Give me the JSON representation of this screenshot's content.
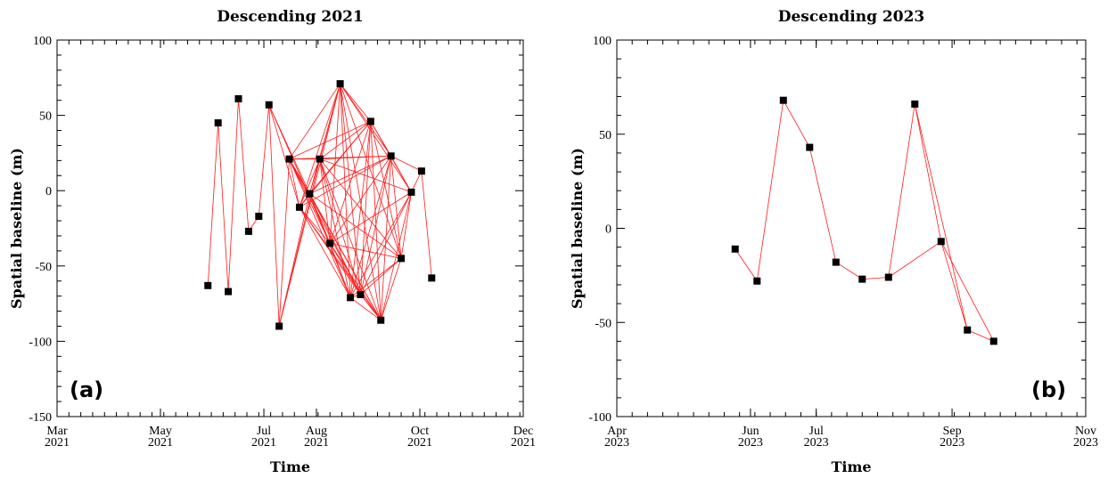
{
  "chart_data": [
    {
      "type": "scatter",
      "title": "Descending 2021",
      "panel_label": "(a)",
      "xlabel": "Time",
      "ylabel": "Spatial baseline (m)",
      "xlim": [
        "2021-03-01",
        "2021-12-01"
      ],
      "ylim": [
        -150,
        100
      ],
      "yticks": [
        -150,
        -100,
        -50,
        0,
        50,
        100
      ],
      "xticks": [
        {
          "date": "2021-03-01",
          "month": "Mar",
          "year": "2021"
        },
        {
          "date": "2021-05-01",
          "month": "May",
          "year": "2021"
        },
        {
          "date": "2021-07-01",
          "month": "Jul",
          "year": "2021"
        },
        {
          "date": "2021-08-01",
          "month": "Aug",
          "year": "2021"
        },
        {
          "date": "2021-10-01",
          "month": "Oct",
          "year": "2021"
        },
        {
          "date": "2021-12-01",
          "month": "Dec",
          "year": "2021"
        }
      ],
      "points": [
        {
          "date": "2021-05-29",
          "y": -63
        },
        {
          "date": "2021-06-04",
          "y": 45
        },
        {
          "date": "2021-06-10",
          "y": -67
        },
        {
          "date": "2021-06-16",
          "y": 61
        },
        {
          "date": "2021-06-22",
          "y": -27
        },
        {
          "date": "2021-06-28",
          "y": -17
        },
        {
          "date": "2021-07-04",
          "y": 57
        },
        {
          "date": "2021-07-10",
          "y": -90
        },
        {
          "date": "2021-07-16",
          "y": 21
        },
        {
          "date": "2021-07-22",
          "y": -11
        },
        {
          "date": "2021-07-28",
          "y": -2
        },
        {
          "date": "2021-08-03",
          "y": 21
        },
        {
          "date": "2021-08-09",
          "y": -35
        },
        {
          "date": "2021-08-15",
          "y": 71
        },
        {
          "date": "2021-08-21",
          "y": -71
        },
        {
          "date": "2021-08-27",
          "y": -69
        },
        {
          "date": "2021-09-02",
          "y": 46
        },
        {
          "date": "2021-09-08",
          "y": -86
        },
        {
          "date": "2021-09-14",
          "y": 23
        },
        {
          "date": "2021-09-20",
          "y": -45
        },
        {
          "date": "2021-09-26",
          "y": -1
        },
        {
          "date": "2021-10-02",
          "y": 13
        },
        {
          "date": "2021-10-08",
          "y": -58
        }
      ],
      "edges": [
        [
          0,
          1
        ],
        [
          1,
          2
        ],
        [
          2,
          3
        ],
        [
          3,
          4
        ],
        [
          4,
          5
        ],
        [
          5,
          6
        ],
        [
          6,
          7
        ],
        [
          6,
          9
        ],
        [
          6,
          10
        ],
        [
          6,
          12
        ],
        [
          7,
          8
        ],
        [
          7,
          10
        ],
        [
          7,
          11
        ],
        [
          7,
          13
        ],
        [
          8,
          9
        ],
        [
          8,
          10
        ],
        [
          8,
          11
        ],
        [
          8,
          12
        ],
        [
          8,
          13
        ],
        [
          8,
          14
        ],
        [
          8,
          15
        ],
        [
          8,
          16
        ],
        [
          8,
          17
        ],
        [
          8,
          18
        ],
        [
          9,
          10
        ],
        [
          9,
          11
        ],
        [
          9,
          12
        ],
        [
          9,
          13
        ],
        [
          9,
          14
        ],
        [
          9,
          15
        ],
        [
          9,
          16
        ],
        [
          9,
          17
        ],
        [
          9,
          18
        ],
        [
          10,
          11
        ],
        [
          10,
          12
        ],
        [
          10,
          13
        ],
        [
          10,
          14
        ],
        [
          10,
          15
        ],
        [
          10,
          16
        ],
        [
          10,
          17
        ],
        [
          10,
          18
        ],
        [
          10,
          19
        ],
        [
          11,
          12
        ],
        [
          11,
          13
        ],
        [
          11,
          14
        ],
        [
          11,
          15
        ],
        [
          11,
          16
        ],
        [
          11,
          17
        ],
        [
          11,
          18
        ],
        [
          11,
          19
        ],
        [
          11,
          20
        ],
        [
          12,
          13
        ],
        [
          12,
          14
        ],
        [
          12,
          15
        ],
        [
          12,
          16
        ],
        [
          12,
          17
        ],
        [
          12,
          18
        ],
        [
          12,
          19
        ],
        [
          12,
          20
        ],
        [
          13,
          14
        ],
        [
          13,
          15
        ],
        [
          13,
          16
        ],
        [
          13,
          17
        ],
        [
          13,
          18
        ],
        [
          13,
          19
        ],
        [
          13,
          20
        ],
        [
          14,
          15
        ],
        [
          14,
          16
        ],
        [
          14,
          17
        ],
        [
          14,
          18
        ],
        [
          14,
          19
        ],
        [
          14,
          20
        ],
        [
          15,
          16
        ],
        [
          15,
          17
        ],
        [
          15,
          18
        ],
        [
          15,
          19
        ],
        [
          15,
          20
        ],
        [
          16,
          17
        ],
        [
          16,
          18
        ],
        [
          16,
          19
        ],
        [
          16,
          20
        ],
        [
          17,
          18
        ],
        [
          17,
          19
        ],
        [
          17,
          20
        ],
        [
          18,
          19
        ],
        [
          18,
          20
        ],
        [
          18,
          21
        ],
        [
          19,
          20
        ],
        [
          20,
          21
        ],
        [
          21,
          22
        ]
      ]
    },
    {
      "type": "scatter",
      "title": "Descending 2023",
      "panel_label": "(b)",
      "xlabel": "Time",
      "ylabel": "Spatial baseline (m)",
      "xlim": [
        "2023-04-01",
        "2023-11-01"
      ],
      "ylim": [
        -100,
        100
      ],
      "yticks": [
        -100,
        -50,
        0,
        50,
        100
      ],
      "xticks": [
        {
          "date": "2023-04-01",
          "month": "Apr",
          "year": "2023"
        },
        {
          "date": "2023-06-01",
          "month": "Jun",
          "year": "2023"
        },
        {
          "date": "2023-07-01",
          "month": "Jul",
          "year": "2023"
        },
        {
          "date": "2023-09-01",
          "month": "Sep",
          "year": "2023"
        },
        {
          "date": "2023-11-01",
          "month": "Nov",
          "year": "2023"
        }
      ],
      "points": [
        {
          "date": "2023-05-25",
          "y": -11
        },
        {
          "date": "2023-06-04",
          "y": -28
        },
        {
          "date": "2023-06-16",
          "y": 68
        },
        {
          "date": "2023-06-28",
          "y": 43
        },
        {
          "date": "2023-07-10",
          "y": -18
        },
        {
          "date": "2023-07-22",
          "y": -27
        },
        {
          "date": "2023-08-03",
          "y": -26
        },
        {
          "date": "2023-08-15",
          "y": 66
        },
        {
          "date": "2023-08-27",
          "y": -7
        },
        {
          "date": "2023-09-08",
          "y": -54
        },
        {
          "date": "2023-09-20",
          "y": -60
        }
      ],
      "edges": [
        [
          0,
          1
        ],
        [
          1,
          2
        ],
        [
          2,
          3
        ],
        [
          3,
          4
        ],
        [
          4,
          5
        ],
        [
          5,
          6
        ],
        [
          6,
          7
        ],
        [
          6,
          8
        ],
        [
          7,
          8
        ],
        [
          7,
          9
        ],
        [
          8,
          9
        ],
        [
          8,
          10
        ],
        [
          9,
          10
        ]
      ]
    }
  ]
}
